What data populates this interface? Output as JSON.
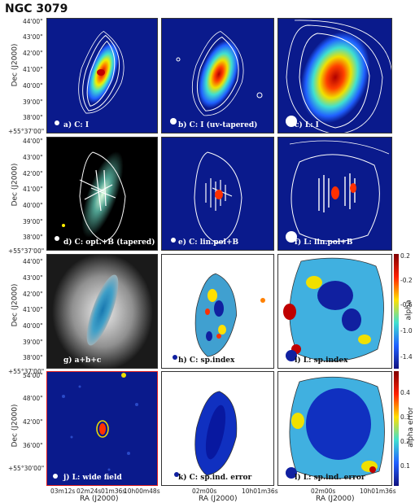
{
  "title": "NGC 3079",
  "axis": {
    "dec_label": "Dec (J2000)",
    "ra_label": "RA (J2000)",
    "dec_ticks": [
      "44'00\"",
      "43'00\"",
      "42'00\"",
      "41'00\"",
      "40'00\"",
      "39'00\"",
      "38'00\"",
      "+55°37'00\""
    ],
    "dec_ticks_wide": [
      "54'00\"",
      "48'00\"",
      "42'00\"",
      "36'00\"",
      "+55°30'00\""
    ],
    "ra_ticks_wide": [
      "03m12s",
      "02m24s",
      "01m36s",
      "10h00m48s"
    ],
    "ra_ticks": [
      "02m00s",
      "10h01m36s"
    ]
  },
  "panels": [
    {
      "id": "a",
      "label": "a) C: I"
    },
    {
      "id": "b",
      "label": "b) C: I (uv-tapered)"
    },
    {
      "id": "c",
      "label": "c) L: I"
    },
    {
      "id": "d",
      "label": "d) C: opt.+B (tapered)"
    },
    {
      "id": "e",
      "label": "e) C: lin.pol+B"
    },
    {
      "id": "f",
      "label": "f) L: lin.pol+B"
    },
    {
      "id": "g",
      "label": "g) a+b+c"
    },
    {
      "id": "h",
      "label": "h) C: sp.index"
    },
    {
      "id": "i",
      "label": "i) L: sp.index"
    },
    {
      "id": "j",
      "label": "j) L: wide field"
    },
    {
      "id": "k",
      "label": "k) C: sp.ind. error"
    },
    {
      "id": "l",
      "label": "l) L: sp.ind. error"
    }
  ],
  "colorbar_alpha": {
    "title": "alpha",
    "ticks": [
      "0.2",
      "-0.2",
      "-0.6",
      "-1.0",
      "-1.4"
    ]
  },
  "colorbar_error": {
    "title": "alpha error",
    "ticks": [
      "0.4",
      "0.3",
      "0.2",
      "0.1"
    ]
  },
  "colors": {
    "background_blue": "#0a1a8c",
    "contour": "#ffffff"
  }
}
